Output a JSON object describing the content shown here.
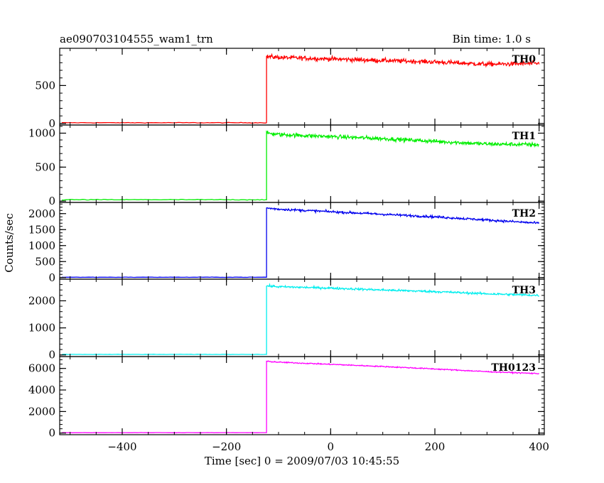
{
  "header": {
    "title": "ae090703104555_wam1_trn",
    "bin_time": "Bin time: 1.0 s"
  },
  "chart_data": {
    "type": "line",
    "xlabel": "Time [sec] 0 = 2009/07/03 10:45:55",
    "ylabel": "Counts/sec",
    "xlim": [
      -520,
      410
    ],
    "x_ticks": [
      -400,
      -200,
      0,
      200,
      400
    ],
    "x_tick_labels": [
      "−400",
      "−200",
      "0",
      "200",
      "400"
    ],
    "onset_time": -123,
    "grid": false,
    "series": [
      {
        "name": "TH0",
        "color": "#ff0000",
        "ylim": [
          -20,
          990
        ],
        "y_ticks": [
          0,
          500
        ],
        "y_tick_labels": [
          "0",
          "500"
        ],
        "pre_level": 10,
        "pre_noise": 3,
        "x": [
          -123,
          -120,
          -100,
          0,
          100,
          200,
          300,
          400
        ],
        "values": [
          880,
          880,
          870,
          850,
          830,
          810,
          780,
          790
        ],
        "noise": 40
      },
      {
        "name": "TH1",
        "color": "#00ee00",
        "ylim": [
          -20,
          1120
        ],
        "y_ticks": [
          0,
          500,
          1000
        ],
        "y_tick_labels": [
          "0",
          "500",
          "1000"
        ],
        "pre_level": 20,
        "pre_noise": 4,
        "x": [
          -123,
          -120,
          -100,
          0,
          100,
          200,
          300,
          400
        ],
        "values": [
          1000,
          1000,
          980,
          950,
          920,
          880,
          840,
          830
        ],
        "noise": 40
      },
      {
        "name": "TH2",
        "color": "#0000ee",
        "ylim": [
          -50,
          2350
        ],
        "y_ticks": [
          0,
          500,
          1000,
          1500,
          2000
        ],
        "y_tick_labels": [
          "0",
          "500",
          "1000",
          "1500",
          "2000"
        ],
        "pre_level": 10,
        "pre_noise": 4,
        "x": [
          -123,
          -120,
          -100,
          0,
          100,
          200,
          300,
          400
        ],
        "values": [
          2180,
          2170,
          2140,
          2060,
          1980,
          1900,
          1800,
          1700
        ],
        "noise": 50
      },
      {
        "name": "TH3",
        "color": "#00eeee",
        "ylim": [
          -60,
          2800
        ],
        "y_ticks": [
          0,
          1000,
          2000
        ],
        "y_tick_labels": [
          "0",
          "1000",
          "2000"
        ],
        "pre_level": 20,
        "pre_noise": 4,
        "x": [
          -123,
          -120,
          -100,
          0,
          100,
          200,
          300,
          400
        ],
        "values": [
          2550,
          2550,
          2520,
          2470,
          2400,
          2340,
          2260,
          2200
        ],
        "noise": 55
      },
      {
        "name": "TH0123",
        "color": "#ff00ff",
        "ylim": [
          -150,
          7100
        ],
        "y_ticks": [
          0,
          2000,
          4000,
          6000
        ],
        "y_tick_labels": [
          "0",
          "2000",
          "4000",
          "6000"
        ],
        "pre_level": 40,
        "pre_noise": 8,
        "x": [
          -123,
          -120,
          -100,
          0,
          100,
          200,
          300,
          400
        ],
        "values": [
          6650,
          6650,
          6580,
          6380,
          6180,
          5950,
          5700,
          5520
        ],
        "noise": 70
      }
    ]
  }
}
